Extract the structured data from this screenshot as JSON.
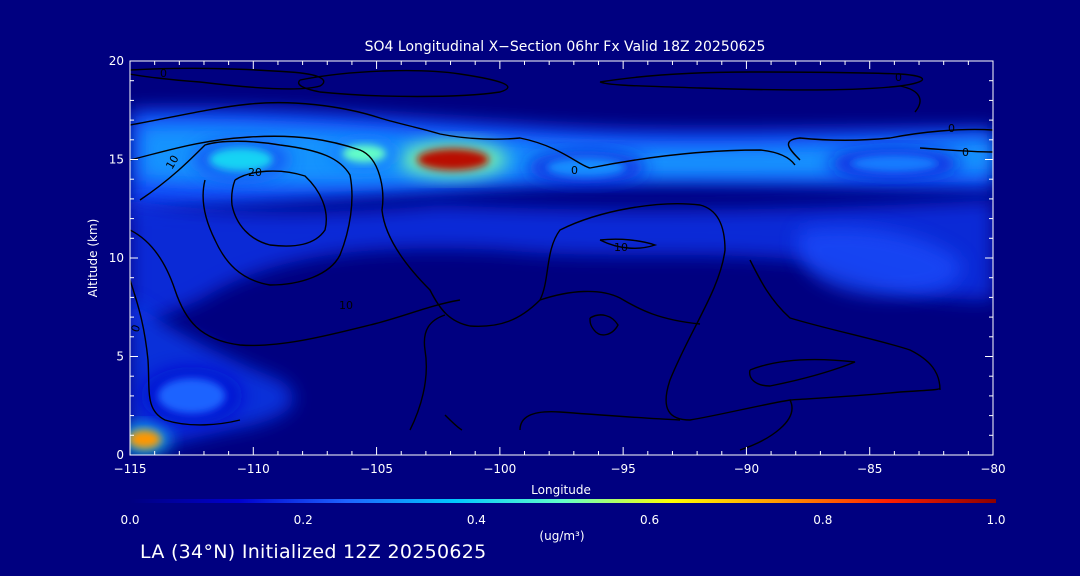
{
  "chart_data": {
    "type": "heatmap",
    "title": "SO4 Longitudinal X−Section 06hr  Fx Valid 18Z 20250625",
    "xlabel": "Longitude",
    "ylabel": "Altitude (km)",
    "xlim": [
      -115,
      -80
    ],
    "ylim": [
      0,
      20
    ],
    "x_ticks": [
      -115,
      -110,
      -105,
      -100,
      -95,
      -90,
      -85,
      -80
    ],
    "x_tick_labels": [
      "−115",
      "−110",
      "−105",
      "−100",
      "−95",
      "−90",
      "−85",
      "−80"
    ],
    "y_ticks": [
      0,
      5,
      10,
      15,
      20
    ],
    "y_tick_labels": [
      "0",
      "5",
      "10",
      "15",
      "20"
    ],
    "concentration_features": [
      {
        "lon": -101.9,
        "alt": 15.0,
        "value": 0.95
      },
      {
        "lon": -114.4,
        "alt": 0.8,
        "value": 0.75
      },
      {
        "lon": -105.5,
        "alt": 15.3,
        "value": 0.5
      },
      {
        "lon": -110.5,
        "alt": 15.0,
        "value": 0.4
      },
      {
        "lon": -96.5,
        "alt": 14.6,
        "value": 0.3
      },
      {
        "lon": -84.0,
        "alt": 14.8,
        "value": 0.28
      },
      {
        "lon": -112.5,
        "alt": 3.0,
        "value": 0.25
      }
    ],
    "contour_labels": [
      "0",
      "10",
      "20",
      "10",
      "10",
      "0",
      "0",
      "0",
      "0",
      "0"
    ],
    "colorbar": {
      "min": 0.0,
      "max": 1.0,
      "ticks": [
        "0.0",
        "0.2",
        "0.4",
        "0.6",
        "0.8",
        "1.0"
      ],
      "units": "(ug/m³)",
      "colors": [
        "#000080",
        "#0000cd",
        "#1e64ff",
        "#00c8ff",
        "#64ffc8",
        "#ffff00",
        "#ff9600",
        "#ff1e00",
        "#8b0000"
      ]
    },
    "grid": false
  },
  "footer_text": "LA (34°N) Initialized 12Z 20250625"
}
